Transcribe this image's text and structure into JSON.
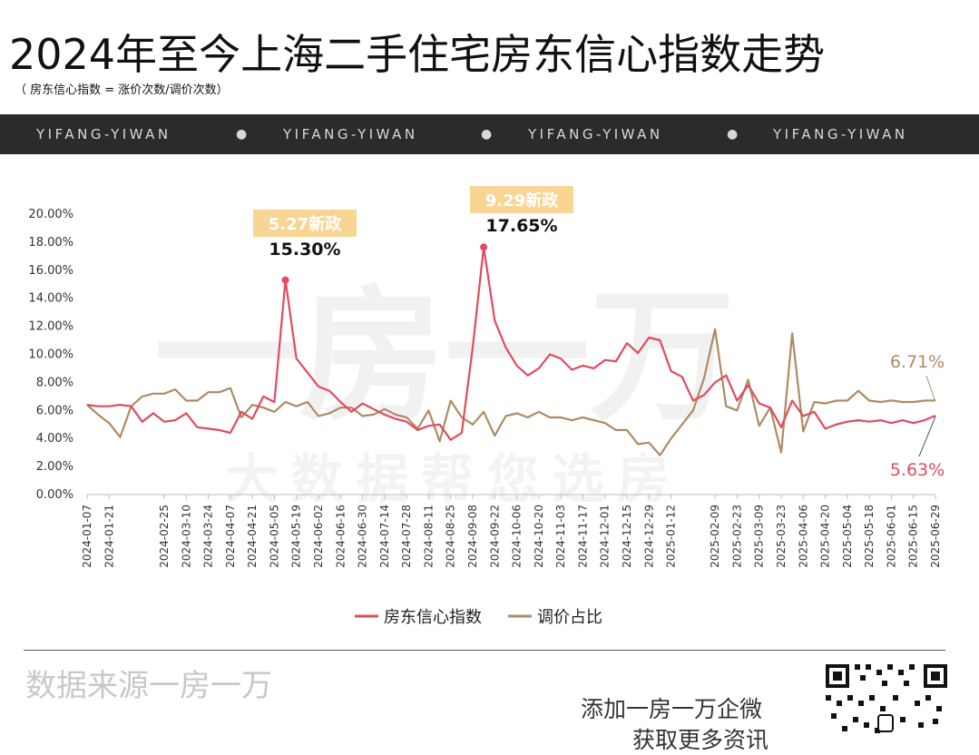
{
  "header": {
    "title": "2024年至今上海二手住宅房东信心指数走势",
    "subtitle": "（ 房东信心指数 = 涨价次数/调价次数）"
  },
  "banner": {
    "items": [
      "YIFANG-YIWAN",
      "YIFANG-YIWAN",
      "YIFANG-YIWAN",
      "YIFANG-YIWAN"
    ],
    "separator": "●"
  },
  "watermark": {
    "main": "一房一万",
    "sub": "大数据帮您选房"
  },
  "annotations": {
    "peak1_label": "5.27新政",
    "peak1_value": "15.30%",
    "peak2_label": "9.29新政",
    "peak2_value": "17.65%",
    "end_brown_value": "6.71%",
    "end_red_value": "5.63%"
  },
  "footer": {
    "source": "数据来源一房一万",
    "wechat_line1": "添加一房一万企微",
    "wechat_line2": "获取更多资讯"
  },
  "colors": {
    "red_series": "#e14b5e",
    "brown_series": "#b08a64",
    "annotation_bg": "#f8d592",
    "band_bg": "#2b2b2b"
  },
  "chart_data": {
    "type": "line",
    "title": "2024年至今上海二手住宅房东信心指数走势",
    "xlabel": "",
    "ylabel": "",
    "ylim": [
      0,
      20
    ],
    "y_ticks": [
      "0.00%",
      "2.00%",
      "4.00%",
      "6.00%",
      "8.00%",
      "10.00%",
      "12.00%",
      "14.00%",
      "16.00%",
      "18.00%",
      "20.00%"
    ],
    "grid": false,
    "legend_position": "bottom",
    "x": [
      "2024-01-07",
      "2024-01-14",
      "2024-01-21",
      "2024-01-28",
      "2024-02-04",
      "2024-02-11",
      "2024-02-18",
      "2024-02-25",
      "2024-03-03",
      "2024-03-10",
      "2024-03-17",
      "2024-03-24",
      "2024-03-31",
      "2024-04-07",
      "2024-04-14",
      "2024-04-21",
      "2024-04-28",
      "2024-05-05",
      "2024-05-12",
      "2024-05-19",
      "2024-05-26",
      "2024-06-02",
      "2024-06-09",
      "2024-06-16",
      "2024-06-23",
      "2024-06-30",
      "2024-07-07",
      "2024-07-14",
      "2024-07-21",
      "2024-07-28",
      "2024-08-04",
      "2024-08-11",
      "2024-08-18",
      "2024-08-25",
      "2024-09-01",
      "2024-09-08",
      "2024-09-15",
      "2024-09-22",
      "2024-09-29",
      "2024-10-06",
      "2024-10-13",
      "2024-10-20",
      "2024-10-27",
      "2024-11-03",
      "2024-11-10",
      "2024-11-17",
      "2024-11-24",
      "2024-12-01",
      "2024-12-08",
      "2024-12-15",
      "2024-12-22",
      "2024-12-29",
      "2025-01-05",
      "2025-01-12",
      "2025-01-19",
      "2025-01-26",
      "2025-02-02",
      "2025-02-09",
      "2025-02-16",
      "2025-02-23",
      "2025-03-02",
      "2025-03-09",
      "2025-03-16",
      "2025-03-23",
      "2025-03-30",
      "2025-04-06",
      "2025-04-13",
      "2025-04-20",
      "2025-04-27",
      "2025-05-04",
      "2025-05-11",
      "2025-05-18",
      "2025-05-25",
      "2025-06-01",
      "2025-06-08",
      "2025-06-15",
      "2025-06-22",
      "2025-06-29"
    ],
    "x_tick_labels": [
      "2024-01-07",
      "2024-01-21",
      "2024-02-25",
      "2024-03-10",
      "2024-03-24",
      "2024-04-07",
      "2024-04-21",
      "2024-05-05",
      "2024-05-19",
      "2024-06-02",
      "2024-06-16",
      "2024-06-30",
      "2024-07-14",
      "2024-07-28",
      "2024-08-11",
      "2024-08-25",
      "2024-09-08",
      "2024-09-22",
      "2024-10-06",
      "2024-10-20",
      "2024-11-03",
      "2024-11-17",
      "2024-12-01",
      "2024-12-15",
      "2024-12-29",
      "2025-01-12",
      "2025-02-09",
      "2025-02-23",
      "2025-03-09",
      "2025-03-23",
      "2025-04-06",
      "2025-04-20",
      "2025-05-04",
      "2025-05-18",
      "2025-06-01",
      "2025-06-15",
      "2025-06-29"
    ],
    "series": [
      {
        "name": "房东信心指数",
        "color": "#e14b5e",
        "values": [
          6.4,
          6.3,
          6.3,
          6.4,
          6.3,
          5.2,
          5.8,
          5.2,
          5.3,
          5.8,
          4.8,
          4.7,
          4.6,
          4.4,
          5.9,
          5.4,
          7.0,
          6.6,
          15.3,
          9.7,
          8.7,
          7.7,
          7.4,
          6.6,
          5.9,
          6.5,
          6.1,
          5.7,
          5.4,
          5.2,
          4.6,
          4.9,
          5.0,
          3.9,
          4.4,
          10.5,
          17.65,
          12.4,
          10.5,
          9.2,
          8.5,
          9.0,
          10.0,
          9.7,
          8.9,
          9.2,
          9.0,
          9.6,
          9.5,
          10.8,
          10.1,
          11.2,
          11.0,
          8.8,
          8.4,
          6.7,
          7.1,
          8.0,
          8.5,
          6.7,
          7.8,
          6.5,
          6.2,
          4.8,
          6.7,
          5.6,
          5.9,
          4.7,
          5.0,
          5.2,
          5.3,
          5.2,
          5.3,
          5.1,
          5.3,
          5.1,
          5.3,
          5.63
        ]
      },
      {
        "name": "调价占比",
        "color": "#b08a64",
        "values": [
          6.4,
          5.7,
          5.1,
          4.1,
          6.3,
          7.0,
          7.2,
          7.2,
          7.5,
          6.7,
          6.7,
          7.3,
          7.3,
          7.6,
          5.5,
          6.4,
          6.2,
          5.9,
          6.6,
          6.3,
          6.6,
          5.6,
          5.8,
          6.2,
          6.2,
          5.6,
          5.7,
          6.1,
          5.7,
          5.5,
          4.7,
          6.0,
          3.8,
          6.7,
          5.5,
          5.0,
          5.9,
          4.2,
          5.6,
          5.8,
          5.5,
          5.9,
          5.5,
          5.5,
          5.3,
          5.5,
          5.3,
          5.1,
          4.6,
          4.6,
          3.6,
          3.7,
          2.8,
          4.0,
          5.0,
          6.0,
          8.3,
          11.8,
          6.3,
          6.0,
          8.2,
          4.9,
          6.2,
          3.0,
          11.5,
          4.5,
          6.6,
          6.5,
          6.7,
          6.7,
          7.4,
          6.7,
          6.6,
          6.71,
          6.6,
          6.6,
          6.7,
          6.71
        ]
      }
    ]
  }
}
